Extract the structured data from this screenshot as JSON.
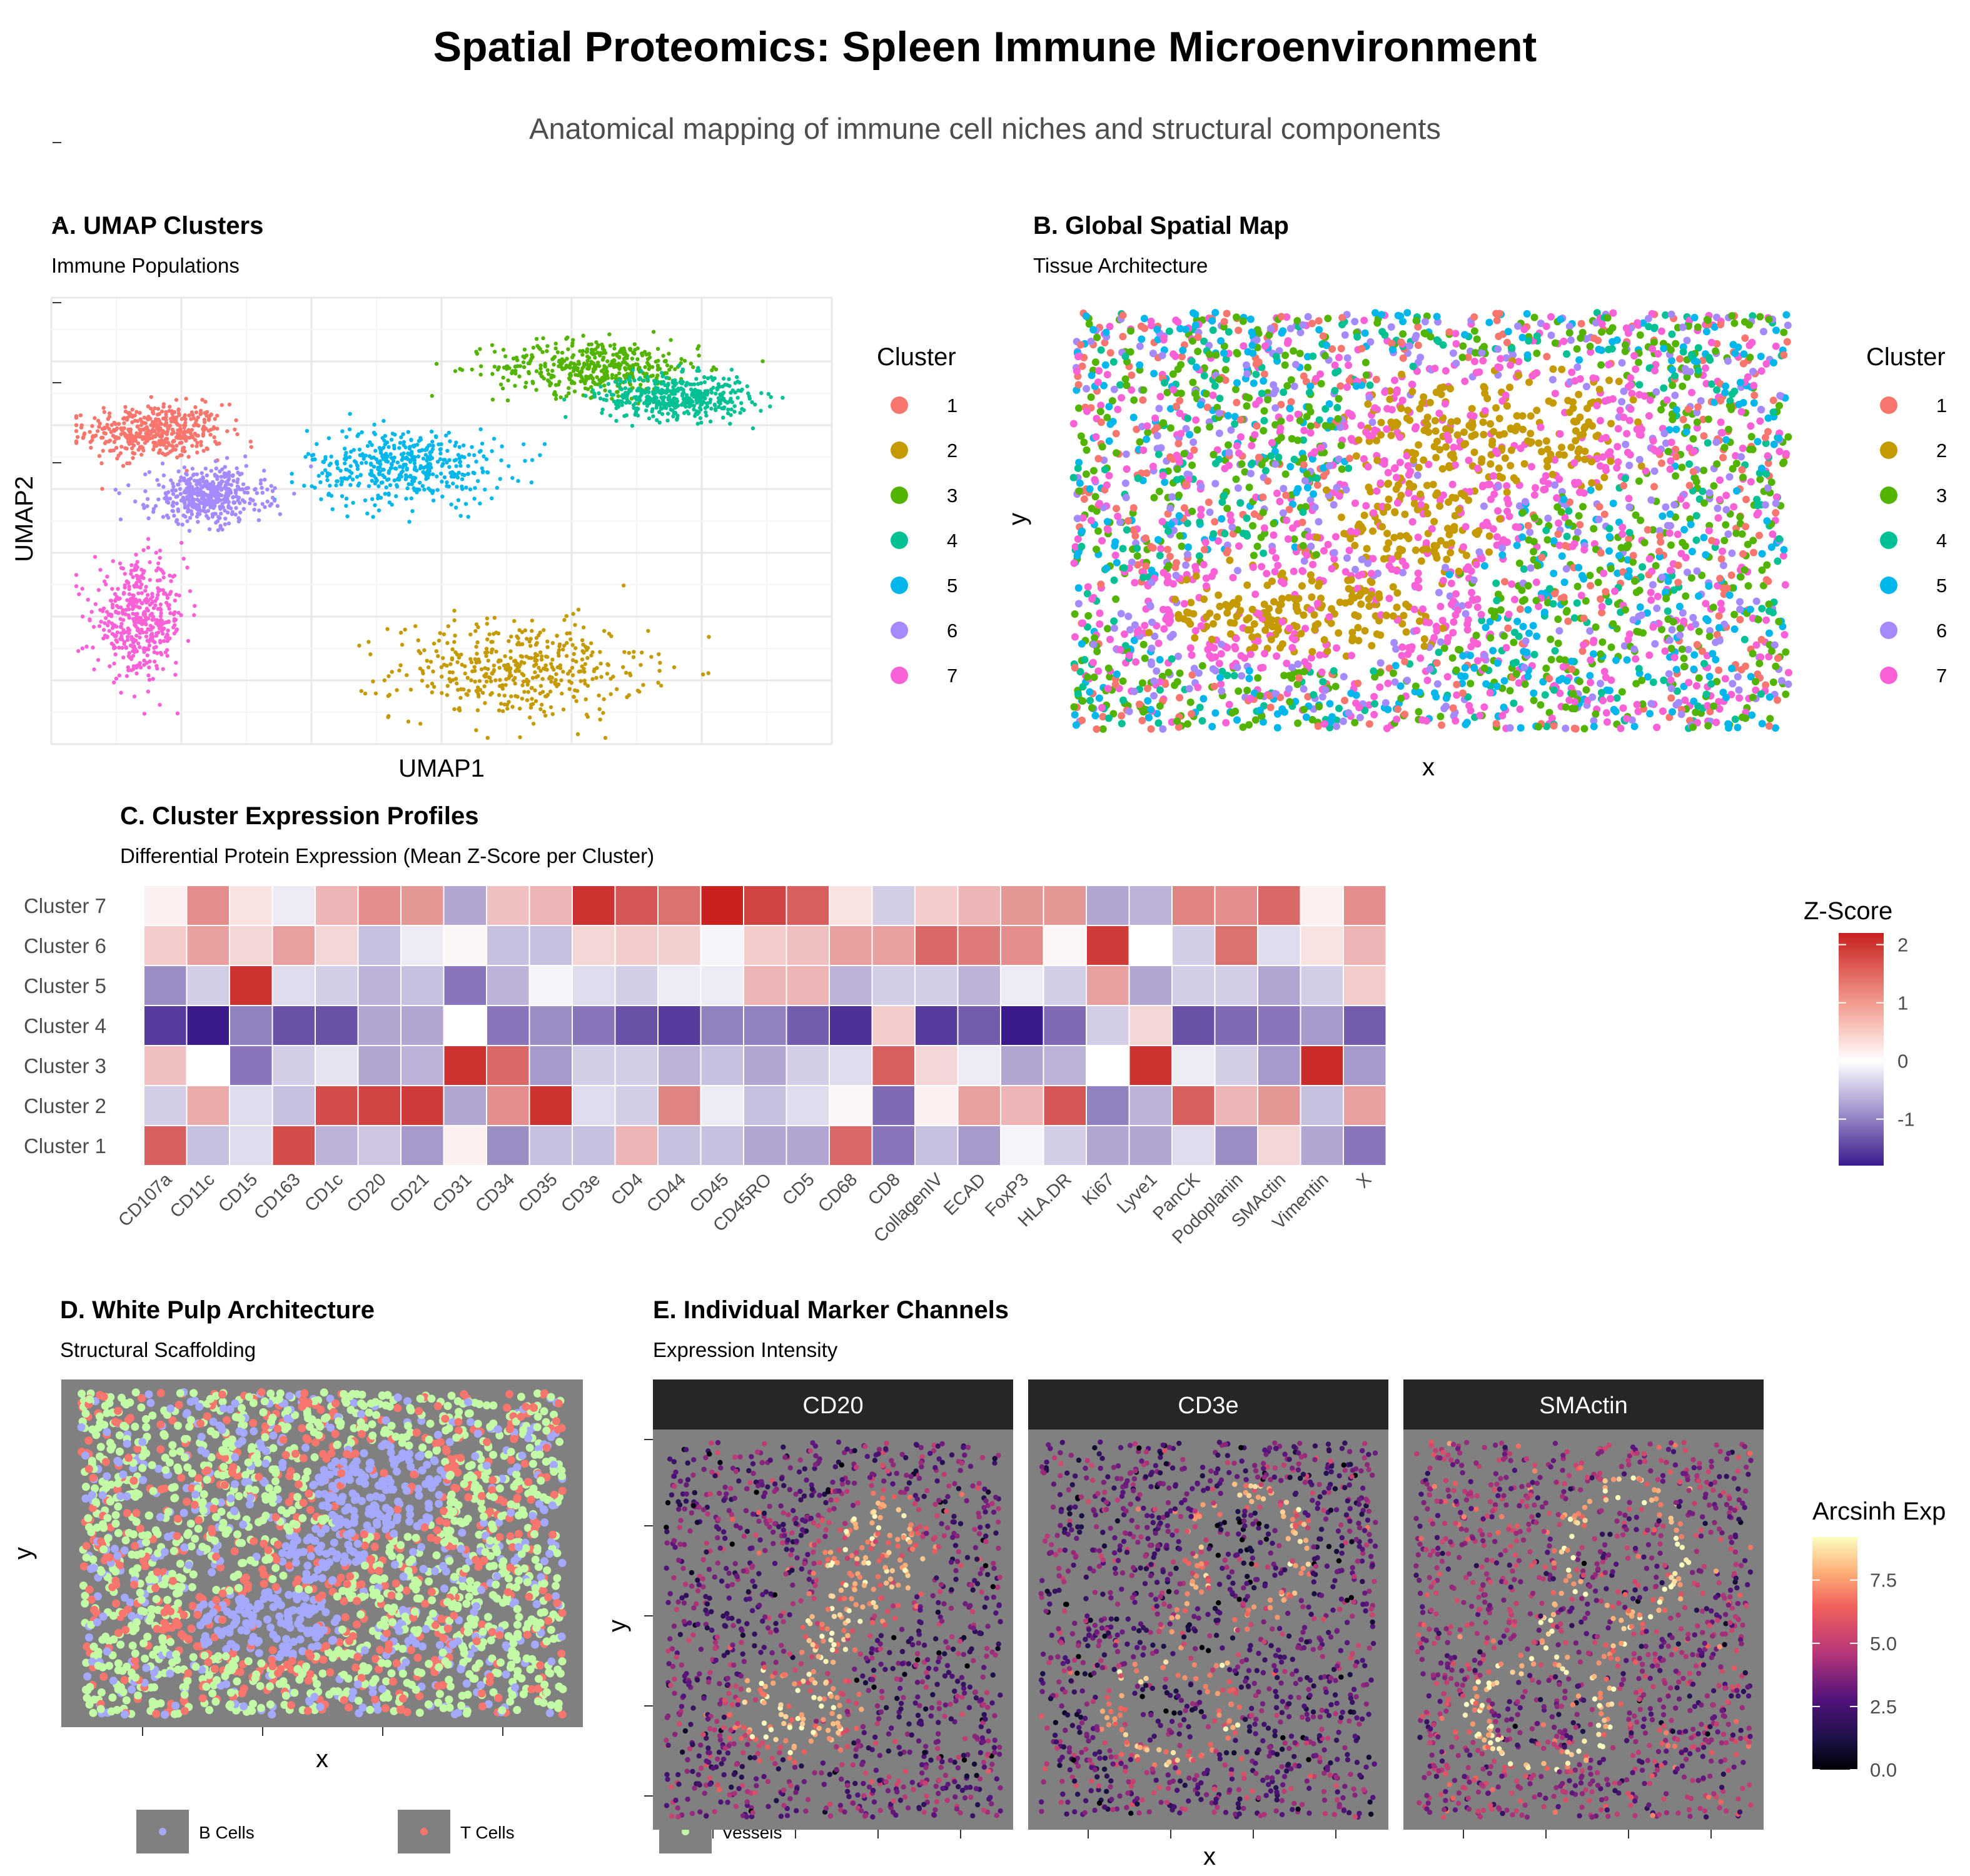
{
  "figure": {
    "title": "Spatial Proteomics: Spleen Immune Microenvironment",
    "subtitle": "Anatomical mapping of immune cell niches and structural components"
  },
  "colors": {
    "clusters": [
      "#F8766D",
      "#C49A00",
      "#53B400",
      "#00C094",
      "#00B6EB",
      "#A58AFF",
      "#FB61D7"
    ],
    "cell_types": {
      "B Cells": "#A5AAFF",
      "T Cells": "#F8766D",
      "Vessels": "#C3FAA5"
    },
    "panel_bg_gray": "#808080",
    "strip_bg": "#262626",
    "heat_low": "#3B1B8C",
    "heat_mid": "#FFFFFF",
    "heat_high": "#C8211F"
  },
  "chart_data": [
    {
      "id": "A",
      "type": "scatter",
      "title": "A. UMAP Clusters",
      "subtitle": "Immune Populations",
      "xlabel": "UMAP1",
      "ylabel": "UMAP2",
      "legend_title": "Cluster",
      "legend_entries": [
        "1",
        "2",
        "3",
        "4",
        "5",
        "6",
        "7"
      ],
      "cluster_centers": [
        {
          "cluster": "1",
          "umap1": -4.0,
          "umap2": 2.3,
          "spread": [
            1.2,
            0.5
          ]
        },
        {
          "cluster": "2",
          "umap1": 3.0,
          "umap2": -2.5,
          "spread": [
            2.2,
            0.9
          ]
        },
        {
          "cluster": "3",
          "umap1": 4.5,
          "umap2": 3.6,
          "spread": [
            1.8,
            0.5
          ]
        },
        {
          "cluster": "4",
          "umap1": 6.0,
          "umap2": 3.0,
          "spread": [
            1.3,
            0.4
          ]
        },
        {
          "cluster": "5",
          "umap1": 0.8,
          "umap2": 1.6,
          "spread": [
            1.7,
            0.7
          ]
        },
        {
          "cluster": "6",
          "umap1": -3.0,
          "umap2": 1.0,
          "spread": [
            1.0,
            0.5
          ]
        },
        {
          "cluster": "7",
          "umap1": -4.3,
          "umap2": -1.5,
          "spread": [
            0.8,
            1.0
          ]
        }
      ],
      "xlim": [
        -6,
        9
      ],
      "ylim": [
        -4,
        5
      ]
    },
    {
      "id": "B",
      "type": "scatter",
      "title": "B. Global Spatial Map",
      "subtitle": "Tissue Architecture",
      "xlabel": "x",
      "ylabel": "y",
      "legend_title": "Cluster",
      "legend_entries": [
        "1",
        "2",
        "3",
        "4",
        "5",
        "6",
        "7"
      ]
    },
    {
      "id": "C",
      "type": "heatmap",
      "title": "C. Cluster Expression Profiles",
      "subtitle": "Differential Protein Expression (Mean Z-Score per Cluster)",
      "legend_title": "Z-Score",
      "legend_ticks": [
        "2",
        "1",
        "0",
        "-1"
      ],
      "legend_tick_values": [
        2,
        1,
        0,
        -1
      ],
      "zlim": [
        -1.8,
        2.2
      ],
      "columns": [
        "CD107a",
        "CD11c",
        "CD15",
        "CD163",
        "CD1c",
        "CD20",
        "CD21",
        "CD31",
        "CD34",
        "CD35",
        "CD3e",
        "CD4",
        "CD44",
        "CD45",
        "CD45RO",
        "CD5",
        "CD68",
        "CD8",
        "CollagenIV",
        "ECAD",
        "FoxP3",
        "HLA.DR",
        "Ki67",
        "Lyve1",
        "PanCK",
        "Podoplanin",
        "SMActin",
        "Vimentin",
        "X"
      ],
      "rows": [
        "Cluster 7",
        "Cluster 6",
        "Cluster 5",
        "Cluster 4",
        "Cluster 3",
        "Cluster 2",
        "Cluster 1"
      ],
      "values": [
        [
          0.1,
          1.0,
          0.2,
          -0.1,
          0.6,
          1.0,
          0.9,
          -0.6,
          0.5,
          0.6,
          2.0,
          1.6,
          1.3,
          2.2,
          1.8,
          1.5,
          0.2,
          -0.3,
          0.4,
          0.6,
          0.9,
          0.9,
          -0.6,
          -0.5,
          1.1,
          1.0,
          1.4,
          0.1,
          1.0
        ],
        [
          0.4,
          0.8,
          0.3,
          0.8,
          0.3,
          -0.4,
          -0.1,
          0.05,
          -0.4,
          -0.4,
          0.3,
          0.4,
          0.35,
          -0.05,
          0.4,
          0.5,
          0.8,
          0.8,
          1.4,
          1.2,
          1.0,
          0.05,
          1.9,
          0.0,
          -0.3,
          1.3,
          -0.2,
          0.2,
          0.6
        ],
        [
          -0.8,
          -0.3,
          2.0,
          -0.2,
          -0.3,
          -0.5,
          -0.4,
          -1.0,
          -0.5,
          -0.05,
          -0.2,
          -0.3,
          -0.1,
          -0.1,
          0.6,
          0.6,
          -0.5,
          -0.3,
          -0.3,
          -0.5,
          -0.1,
          -0.3,
          0.8,
          -0.6,
          -0.3,
          -0.3,
          -0.6,
          -0.3,
          0.4
        ],
        [
          -1.5,
          -1.9,
          -0.9,
          -1.3,
          -1.3,
          -0.6,
          -0.6,
          0.0,
          -1.0,
          -0.8,
          -1.0,
          -1.3,
          -1.5,
          -0.9,
          -0.9,
          -1.2,
          -1.6,
          0.4,
          -1.5,
          -1.2,
          -1.8,
          -1.1,
          -0.3,
          0.3,
          -1.3,
          -1.1,
          -1.0,
          -0.7,
          -1.2
        ],
        [
          0.5,
          0.0,
          -1.0,
          -0.3,
          -0.15,
          -0.6,
          -0.5,
          2.0,
          1.4,
          -0.7,
          -0.3,
          -0.3,
          -0.5,
          -0.4,
          -0.6,
          -0.3,
          -0.2,
          1.5,
          0.3,
          -0.1,
          -0.6,
          -0.5,
          0.0,
          2.0,
          -0.1,
          -0.3,
          -0.7,
          2.1,
          -0.7
        ],
        [
          -0.3,
          0.7,
          -0.2,
          -0.4,
          1.7,
          1.8,
          1.9,
          -0.6,
          1.0,
          2.0,
          -0.2,
          -0.3,
          1.1,
          -0.1,
          -0.4,
          -0.2,
          0.05,
          -1.1,
          0.1,
          0.8,
          0.6,
          1.6,
          -0.9,
          -0.5,
          1.5,
          0.6,
          0.9,
          -0.4,
          0.8
        ],
        [
          1.5,
          -0.4,
          -0.2,
          1.7,
          -0.5,
          -0.35,
          -0.7,
          0.1,
          -0.8,
          -0.4,
          -0.4,
          0.6,
          -0.4,
          -0.4,
          -0.6,
          -0.6,
          1.4,
          -1.0,
          -0.4,
          -0.7,
          -0.05,
          -0.3,
          -0.6,
          -0.6,
          -0.2,
          -0.8,
          0.3,
          -0.6,
          -1.0
        ]
      ]
    },
    {
      "id": "D",
      "type": "scatter",
      "title": "D. White Pulp Architecture",
      "subtitle": "Structural Scaffolding",
      "xlabel": "x",
      "ylabel": "y",
      "legend_entries": [
        "B Cells",
        "T Cells",
        "Vessels"
      ]
    },
    {
      "id": "E",
      "type": "scatter",
      "title": "E. Individual Marker Channels",
      "subtitle": "Expression Intensity",
      "xlabel": "x",
      "ylabel": "y",
      "facets": [
        "CD20",
        "CD3e",
        "SMActin"
      ],
      "legend_title": "Arcsinh Exp",
      "legend_ticks": [
        "7.5",
        "5.0",
        "2.5",
        "0.0"
      ],
      "legend_tick_values": [
        7.5,
        5.0,
        2.5,
        0.0
      ],
      "zlim": [
        0,
        9.2
      ]
    }
  ]
}
